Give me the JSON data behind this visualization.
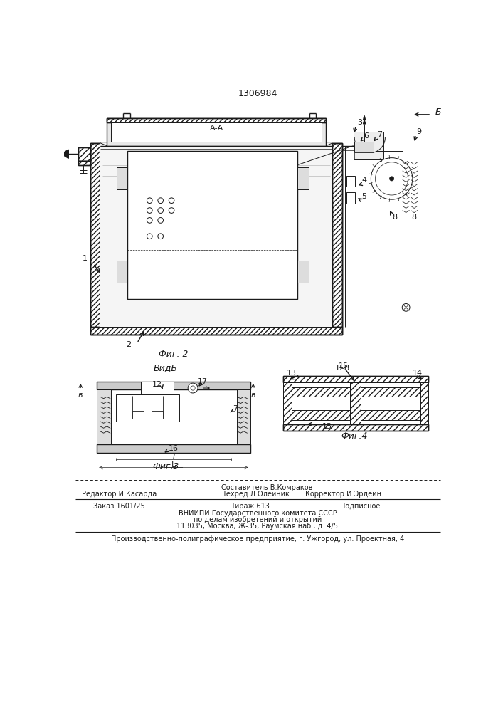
{
  "title": "1306984",
  "bg_color": "#ffffff",
  "line_color": "#1a1a1a",
  "fig2_label": "Фиг. 2",
  "fig3_label": "Фиг.3",
  "fig4_label": "Фиг.4",
  "view_b_label": "ВидБ",
  "section_aa": "А-А",
  "section_bb": "В-В",
  "footer_line1_left": "Редактор И.Касарда",
  "footer_line1_center": "Составитель В.Комраков",
  "footer_line1_right_1": "Техред Л.Олейник",
  "footer_line1_right_2": "Корректор И.Эрдейн",
  "footer_line2_1": "Заказ 1601/25",
  "footer_line2_2": "Тираж 613",
  "footer_line2_3": "Подписное",
  "footer_line3": "ВНИИПИ Государственного комитета СССР",
  "footer_line4": "по делам изобретений и открытий",
  "footer_line5": "113035, Москва, Ж-35, Раумская наб., д. 4/5",
  "footer_line6": "Производственно-полиграфическое предприятие, г. Ужгород, ул. Проектная, 4"
}
